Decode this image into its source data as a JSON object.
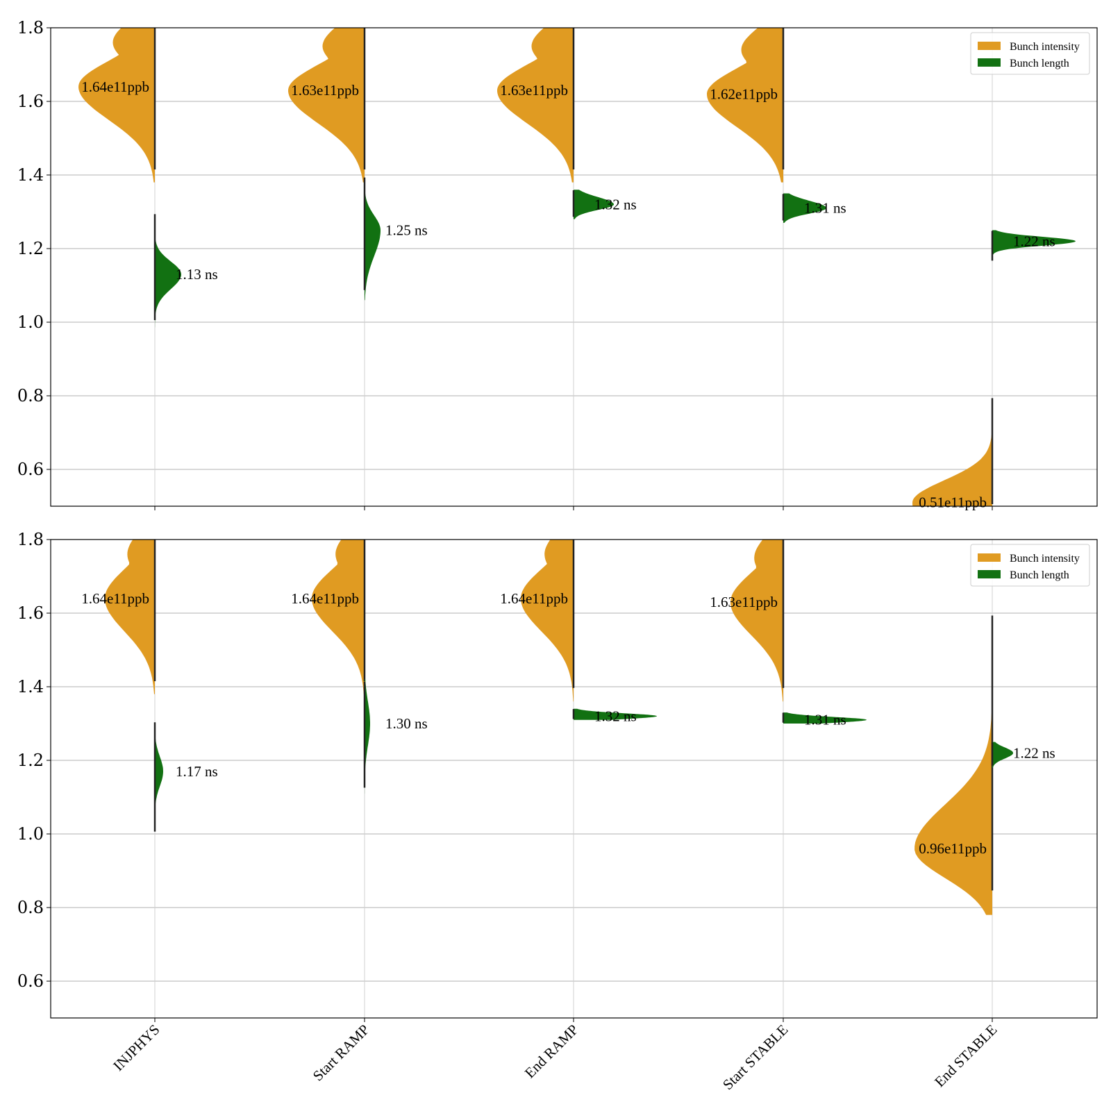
{
  "chart_data": [
    {
      "type": "violin",
      "title": "",
      "xlabel": "",
      "ylabel": "",
      "ylim": [
        0.5,
        1.8
      ],
      "yticks": [
        "0.6",
        "0.8",
        "1.0",
        "1.2",
        "1.4",
        "1.6",
        "1.8"
      ],
      "grid": true,
      "legend_position": "top-right",
      "categories": [
        "INJPHYS",
        "Start RAMP",
        "End RAMP",
        "Start STABLE",
        "End STABLE"
      ],
      "series": [
        {
          "name": "Bunch intensity",
          "color": "#e09b22",
          "side": "left",
          "medians": [
            1.64,
            1.63,
            1.63,
            1.62,
            0.51
          ],
          "labels": [
            "1.64e11ppb",
            "1.63e11ppb",
            "1.63e11ppb",
            "1.62e11ppb",
            "0.51e11ppb"
          ],
          "ranges": [
            [
              1.38,
              1.82
            ],
            [
              1.38,
              1.82
            ],
            [
              1.38,
              1.82
            ],
            [
              1.38,
              1.82
            ],
            [
              0.48,
              0.8
            ]
          ]
        },
        {
          "name": "Bunch length",
          "color": "#127112",
          "side": "right",
          "medians": [
            1.13,
            1.25,
            1.32,
            1.31,
            1.22
          ],
          "labels": [
            "1.13 ns",
            "1.25 ns",
            "1.32 ns",
            "1.31 ns",
            "1.22 ns"
          ],
          "ranges": [
            [
              0.98,
              1.3
            ],
            [
              1.06,
              1.4
            ],
            [
              1.28,
              1.36
            ],
            [
              1.27,
              1.35
            ],
            [
              1.16,
              1.25
            ]
          ]
        }
      ]
    },
    {
      "type": "violin",
      "title": "",
      "xlabel": "",
      "ylabel": "",
      "ylim": [
        0.5,
        1.8
      ],
      "yticks": [
        "0.6",
        "0.8",
        "1.0",
        "1.2",
        "1.4",
        "1.6",
        "1.8"
      ],
      "grid": true,
      "legend_position": "top-right",
      "categories": [
        "INJPHYS",
        "Start RAMP",
        "End RAMP",
        "Start STABLE",
        "End STABLE"
      ],
      "series": [
        {
          "name": "Bunch intensity",
          "color": "#e09b22",
          "side": "left",
          "medians": [
            1.64,
            1.64,
            1.64,
            1.63,
            0.96
          ],
          "labels": [
            "1.64e11ppb",
            "1.64e11ppb",
            "1.64e11ppb",
            "1.63e11ppb",
            "0.96e11ppb"
          ],
          "ranges": [
            [
              1.38,
              1.82
            ],
            [
              1.38,
              1.82
            ],
            [
              1.36,
              1.82
            ],
            [
              1.36,
              1.82
            ],
            [
              0.78,
              1.61
            ]
          ]
        },
        {
          "name": "Bunch length",
          "color": "#127112",
          "side": "right",
          "medians": [
            1.17,
            1.3,
            1.32,
            1.31,
            1.22
          ],
          "labels": [
            "1.17 ns",
            "1.30 ns",
            "1.32 ns",
            "1.31 ns",
            "1.22 ns"
          ],
          "ranges": [
            [
              0.98,
              1.31
            ],
            [
              1.1,
              1.42
            ],
            [
              1.31,
              1.34
            ],
            [
              1.3,
              1.33
            ],
            [
              1.18,
              1.25
            ]
          ]
        }
      ]
    }
  ]
}
